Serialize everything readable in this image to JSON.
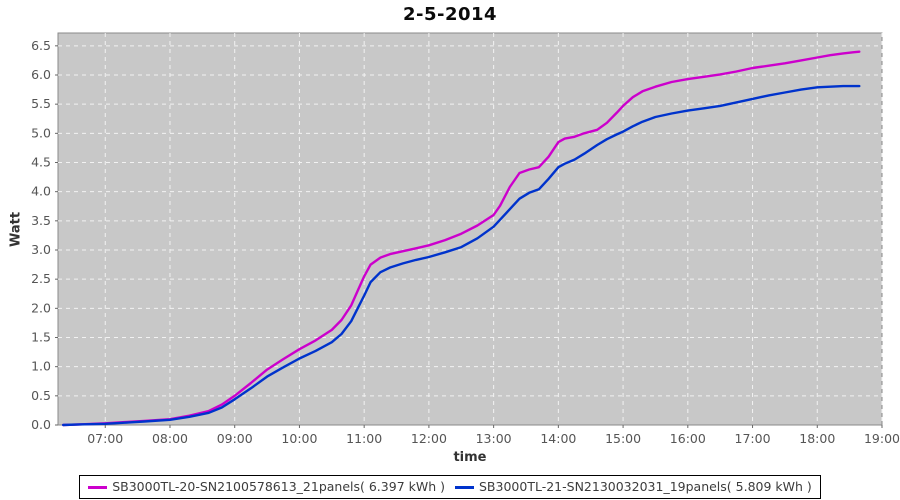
{
  "chart_data": {
    "type": "line",
    "title": "2-5-2014",
    "xlabel": "time",
    "ylabel": "Watt",
    "legend_position": "bottom",
    "grid": "white dashed on gray plot background",
    "plot_bg_color": "#c8c8c8",
    "plot_border_color": "#8a8a8a",
    "grid_color": "#f2f2f2",
    "tick_label_color": "#555555",
    "x_ticks": [
      {
        "hour": 7,
        "label": "07:00"
      },
      {
        "hour": 8,
        "label": "08:00"
      },
      {
        "hour": 9,
        "label": "09:00"
      },
      {
        "hour": 10,
        "label": "10:00"
      },
      {
        "hour": 11,
        "label": "11:00"
      },
      {
        "hour": 12,
        "label": "12:00"
      },
      {
        "hour": 13,
        "label": "13:00"
      },
      {
        "hour": 14,
        "label": "14:00"
      },
      {
        "hour": 15,
        "label": "15:00"
      },
      {
        "hour": 16,
        "label": "16:00"
      },
      {
        "hour": 17,
        "label": "17:00"
      },
      {
        "hour": 18,
        "label": "18:00"
      },
      {
        "hour": 19,
        "label": "19:00"
      }
    ],
    "y_ticks": [
      {
        "value": 0.0,
        "label": "0.0"
      },
      {
        "value": 0.5,
        "label": "0.5"
      },
      {
        "value": 1.0,
        "label": "1.0"
      },
      {
        "value": 1.5,
        "label": "1.5"
      },
      {
        "value": 2.0,
        "label": "2.0"
      },
      {
        "value": 2.5,
        "label": "2.5"
      },
      {
        "value": 3.0,
        "label": "3.0"
      },
      {
        "value": 3.5,
        "label": "3.5"
      },
      {
        "value": 4.0,
        "label": "4.0"
      },
      {
        "value": 4.5,
        "label": "4.5"
      },
      {
        "value": 5.0,
        "label": "5.0"
      },
      {
        "value": 5.5,
        "label": "5.5"
      },
      {
        "value": 6.0,
        "label": "6.0"
      },
      {
        "value": 6.5,
        "label": "6.5"
      }
    ],
    "x_range_hours": [
      6.27,
      19.0
    ],
    "y_range": [
      0,
      6.72
    ],
    "series": [
      {
        "label": "SB3000TL-20-SN2100578613_21panels( 6.397 kWh )",
        "color": "#cc00cc",
        "total_kwh": 6.397,
        "points": [
          [
            6.35,
            0.0
          ],
          [
            6.6,
            0.01
          ],
          [
            7.0,
            0.03
          ],
          [
            7.3,
            0.05
          ],
          [
            7.6,
            0.07
          ],
          [
            8.0,
            0.1
          ],
          [
            8.3,
            0.16
          ],
          [
            8.6,
            0.24
          ],
          [
            8.8,
            0.35
          ],
          [
            9.0,
            0.5
          ],
          [
            9.25,
            0.72
          ],
          [
            9.5,
            0.95
          ],
          [
            9.75,
            1.13
          ],
          [
            10.0,
            1.3
          ],
          [
            10.25,
            1.45
          ],
          [
            10.5,
            1.63
          ],
          [
            10.65,
            1.8
          ],
          [
            10.8,
            2.05
          ],
          [
            10.9,
            2.3
          ],
          [
            11.0,
            2.55
          ],
          [
            11.1,
            2.75
          ],
          [
            11.25,
            2.87
          ],
          [
            11.4,
            2.93
          ],
          [
            11.6,
            2.98
          ],
          [
            11.8,
            3.03
          ],
          [
            12.0,
            3.08
          ],
          [
            12.25,
            3.17
          ],
          [
            12.5,
            3.28
          ],
          [
            12.75,
            3.42
          ],
          [
            13.0,
            3.6
          ],
          [
            13.1,
            3.76
          ],
          [
            13.25,
            4.08
          ],
          [
            13.4,
            4.32
          ],
          [
            13.55,
            4.38
          ],
          [
            13.7,
            4.42
          ],
          [
            13.85,
            4.6
          ],
          [
            14.0,
            4.85
          ],
          [
            14.1,
            4.91
          ],
          [
            14.25,
            4.94
          ],
          [
            14.4,
            5.0
          ],
          [
            14.6,
            5.06
          ],
          [
            14.75,
            5.18
          ],
          [
            14.9,
            5.35
          ],
          [
            15.0,
            5.47
          ],
          [
            15.15,
            5.62
          ],
          [
            15.3,
            5.72
          ],
          [
            15.5,
            5.8
          ],
          [
            15.75,
            5.88
          ],
          [
            16.0,
            5.93
          ],
          [
            16.25,
            5.97
          ],
          [
            16.5,
            6.01
          ],
          [
            16.75,
            6.06
          ],
          [
            17.0,
            6.12
          ],
          [
            17.25,
            6.16
          ],
          [
            17.5,
            6.2
          ],
          [
            17.75,
            6.25
          ],
          [
            18.0,
            6.3
          ],
          [
            18.2,
            6.34
          ],
          [
            18.4,
            6.37
          ],
          [
            18.55,
            6.39
          ],
          [
            18.65,
            6.4
          ]
        ]
      },
      {
        "label": "SB3000TL-21-SN2130032031_19panels( 5.809 kWh )",
        "color": "#0033cc",
        "total_kwh": 5.809,
        "points": [
          [
            6.35,
            0.0
          ],
          [
            6.6,
            0.01
          ],
          [
            7.0,
            0.02
          ],
          [
            7.3,
            0.04
          ],
          [
            7.6,
            0.06
          ],
          [
            8.0,
            0.09
          ],
          [
            8.3,
            0.14
          ],
          [
            8.6,
            0.21
          ],
          [
            8.8,
            0.3
          ],
          [
            9.0,
            0.44
          ],
          [
            9.25,
            0.63
          ],
          [
            9.5,
            0.83
          ],
          [
            9.75,
            0.99
          ],
          [
            10.0,
            1.14
          ],
          [
            10.25,
            1.27
          ],
          [
            10.5,
            1.42
          ],
          [
            10.65,
            1.56
          ],
          [
            10.8,
            1.78
          ],
          [
            10.9,
            2.0
          ],
          [
            11.0,
            2.22
          ],
          [
            11.1,
            2.45
          ],
          [
            11.25,
            2.62
          ],
          [
            11.4,
            2.7
          ],
          [
            11.6,
            2.77
          ],
          [
            11.8,
            2.83
          ],
          [
            12.0,
            2.88
          ],
          [
            12.25,
            2.96
          ],
          [
            12.5,
            3.05
          ],
          [
            12.75,
            3.2
          ],
          [
            13.0,
            3.4
          ],
          [
            13.1,
            3.52
          ],
          [
            13.25,
            3.7
          ],
          [
            13.4,
            3.88
          ],
          [
            13.55,
            3.98
          ],
          [
            13.7,
            4.04
          ],
          [
            13.85,
            4.22
          ],
          [
            14.0,
            4.42
          ],
          [
            14.1,
            4.48
          ],
          [
            14.25,
            4.55
          ],
          [
            14.4,
            4.65
          ],
          [
            14.6,
            4.8
          ],
          [
            14.75,
            4.9
          ],
          [
            14.9,
            4.98
          ],
          [
            15.0,
            5.03
          ],
          [
            15.15,
            5.12
          ],
          [
            15.3,
            5.2
          ],
          [
            15.5,
            5.28
          ],
          [
            15.75,
            5.34
          ],
          [
            16.0,
            5.39
          ],
          [
            16.25,
            5.43
          ],
          [
            16.5,
            5.47
          ],
          [
            16.75,
            5.53
          ],
          [
            17.0,
            5.59
          ],
          [
            17.25,
            5.65
          ],
          [
            17.5,
            5.7
          ],
          [
            17.75,
            5.75
          ],
          [
            18.0,
            5.79
          ],
          [
            18.2,
            5.8
          ],
          [
            18.4,
            5.81
          ],
          [
            18.55,
            5.81
          ],
          [
            18.65,
            5.81
          ]
        ]
      }
    ]
  }
}
